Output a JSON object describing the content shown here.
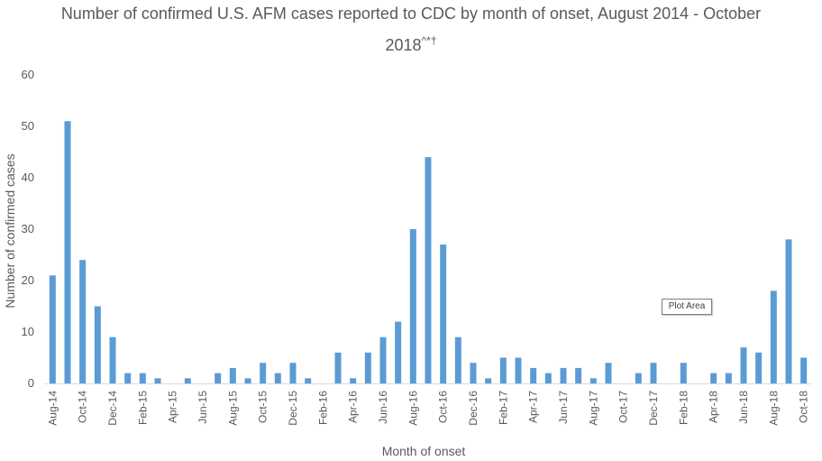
{
  "chart_data": {
    "type": "bar",
    "title_main": "Number of confirmed U.S. AFM cases reported to CDC by month of onset, August 2014 - October",
    "title_year": "2018",
    "title_marks": "^*†",
    "xlabel": "Month of onset",
    "ylabel": "Number of confirmed cases",
    "ylim": [
      0,
      60
    ],
    "yticks": [
      "0",
      "10",
      "20",
      "30",
      "40",
      "50",
      "60"
    ],
    "bar_color": "#5b9bd5",
    "grid": false,
    "categories": [
      "Aug-14",
      "Sep-14",
      "Oct-14",
      "Nov-14",
      "Dec-14",
      "Jan-15",
      "Feb-15",
      "Mar-15",
      "Apr-15",
      "May-15",
      "Jun-15",
      "Jul-15",
      "Aug-15",
      "Sep-15",
      "Oct-15",
      "Nov-15",
      "Dec-15",
      "Jan-16",
      "Feb-16",
      "Mar-16",
      "Apr-16",
      "May-16",
      "Jun-16",
      "Jul-16",
      "Aug-16",
      "Sep-16",
      "Oct-16",
      "Nov-16",
      "Dec-16",
      "Jan-17",
      "Feb-17",
      "Mar-17",
      "Apr-17",
      "May-17",
      "Jun-17",
      "Jul-17",
      "Aug-17",
      "Sep-17",
      "Oct-17",
      "Nov-17",
      "Dec-17",
      "Jan-18",
      "Feb-18",
      "Mar-18",
      "Apr-18",
      "May-18",
      "Jun-18",
      "Jul-18",
      "Aug-18",
      "Sep-18",
      "Oct-18"
    ],
    "values": [
      21,
      51,
      24,
      15,
      9,
      2,
      2,
      1,
      0,
      1,
      0,
      2,
      3,
      1,
      4,
      2,
      4,
      1,
      0,
      6,
      1,
      6,
      9,
      12,
      30,
      44,
      27,
      9,
      4,
      1,
      5,
      5,
      3,
      2,
      3,
      3,
      1,
      4,
      0,
      2,
      4,
      0,
      4,
      0,
      2,
      2,
      7,
      6,
      18,
      28,
      5
    ],
    "visible_tick_labels": [
      "Aug-14",
      "Oct-14",
      "Dec-14",
      "Feb-15",
      "Apr-15",
      "Jun-15",
      "Aug-15",
      "Oct-15",
      "Dec-15",
      "Feb-16",
      "Apr-16",
      "Jun-16",
      "Aug-16",
      "Oct-16",
      "Dec-16",
      "Feb-17",
      "Apr-17",
      "Jun-17",
      "Aug-17",
      "Oct-17",
      "Dec-17",
      "Feb-18",
      "Apr-18",
      "Jun-18",
      "Aug-18",
      "Oct-18"
    ]
  },
  "tooltip": {
    "label": "Plot Area"
  }
}
